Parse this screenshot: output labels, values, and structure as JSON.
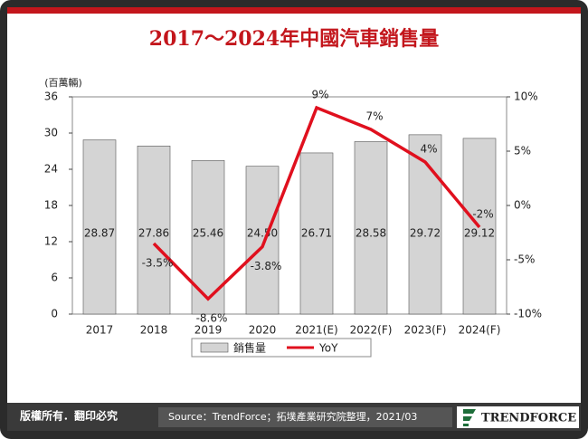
{
  "chart_data": {
    "type": "bar",
    "title": "2017～2024年中國汽車銷售量",
    "y_label": "(百萬輛)",
    "categories": [
      "2017",
      "2018",
      "2019",
      "2020",
      "2021(E)",
      "2022(F)",
      "2023(F)",
      "2024(F)"
    ],
    "ylim": [
      0,
      36
    ],
    "yticks": [
      0,
      6,
      12,
      18,
      24,
      30,
      36
    ],
    "y2lim": [
      -10,
      10
    ],
    "y2ticks": [
      {
        "value": -10,
        "label": "-10%"
      },
      {
        "value": -5,
        "label": "-5%"
      },
      {
        "value": 0,
        "label": "0%"
      },
      {
        "value": 5,
        "label": "5%"
      },
      {
        "value": 10,
        "label": "10%"
      }
    ],
    "series": [
      {
        "name": "銷售量",
        "type": "bar",
        "color": "#d4d4d4",
        "values": [
          28.87,
          27.86,
          25.46,
          24.5,
          26.71,
          28.58,
          29.72,
          29.12
        ],
        "value_labels": [
          "28.87",
          "27.86",
          "25.46",
          "24.50",
          "26.71",
          "28.58",
          "29.72",
          "29.12"
        ]
      },
      {
        "name": "YoY",
        "type": "line",
        "axis": "y2",
        "color": "#e0101e",
        "values": [
          null,
          -3.5,
          -8.6,
          -3.8,
          9,
          7,
          4,
          -2
        ],
        "value_labels": [
          null,
          "-3.5%",
          "-8.6%",
          "-3.8%",
          "9%",
          "7%",
          "4%",
          "-2%"
        ]
      }
    ]
  },
  "footer": {
    "rights": "版權所有．翻印必究",
    "source": "Source：TrendForce；拓墣產業研究院整理，2021/03",
    "logo": "TRENDFORCE"
  }
}
